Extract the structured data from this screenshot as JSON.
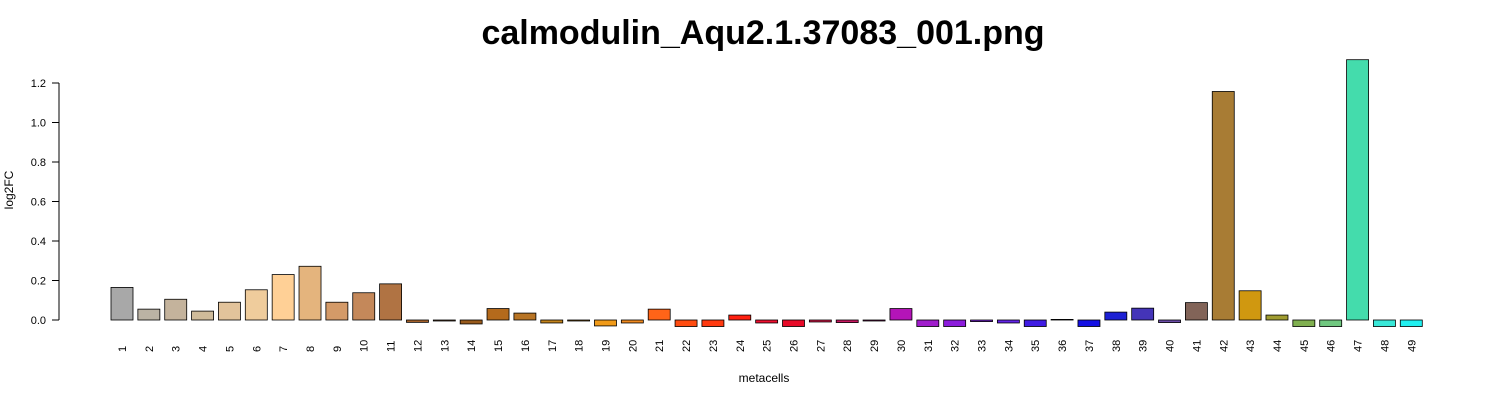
{
  "chart_data": {
    "type": "bar",
    "title": "calmodulin_Aqu2.1.37083_001.png",
    "xlabel": "metacells",
    "ylabel": "log2FC",
    "ylim": [
      -0.04,
      1.32
    ],
    "yticks": [
      "0.0",
      "0.2",
      "0.4",
      "0.6",
      "0.8",
      "1.0",
      "1.2"
    ],
    "ytick_values": [
      0,
      0.2,
      0.4,
      0.6,
      0.8,
      1.0,
      1.2
    ],
    "grid": false,
    "categories": [
      "1",
      "2",
      "3",
      "4",
      "5",
      "6",
      "7",
      "8",
      "9",
      "10",
      "11",
      "12",
      "13",
      "14",
      "15",
      "16",
      "17",
      "18",
      "19",
      "20",
      "21",
      "22",
      "23",
      "24",
      "25",
      "26",
      "27",
      "28",
      "29",
      "30",
      "31",
      "32",
      "33",
      "34",
      "35",
      "36",
      "37",
      "38",
      "39",
      "40",
      "41",
      "42",
      "43",
      "44",
      "45",
      "46",
      "47",
      "48",
      "49"
    ],
    "values": [
      0.165,
      0.055,
      0.105,
      0.045,
      0.09,
      0.153,
      0.23,
      0.272,
      0.09,
      0.138,
      0.183,
      -0.012,
      -0.005,
      -0.02,
      0.058,
      0.035,
      -0.015,
      -0.005,
      -0.03,
      -0.015,
      0.055,
      -0.033,
      -0.033,
      0.025,
      -0.015,
      -0.033,
      -0.01,
      -0.013,
      -0.005,
      0.058,
      -0.033,
      -0.033,
      -0.008,
      -0.015,
      -0.033,
      0.003,
      -0.033,
      0.04,
      0.06,
      -0.013,
      0.088,
      1.157,
      0.148,
      0.025,
      -0.033,
      -0.033,
      1.318,
      -0.033,
      -0.033
    ],
    "colors": [
      "#a8a8a8",
      "#bbb3a4",
      "#c4b39c",
      "#cfbb9a",
      "#e2c39b",
      "#efcc9c",
      "#ffd096",
      "#e4b47d",
      "#d49a68",
      "#c4885a",
      "#b07343",
      "#a8632c",
      "#9c6a3c",
      "#985a1c",
      "#b46a1c",
      "#b87424",
      "#c4841c",
      "#d08c18",
      "#f09a18",
      "#f08a20",
      "#ff6418",
      "#ff4c10",
      "#ff3a10",
      "#ff2010",
      "#f01030",
      "#e80a28",
      "#d81848",
      "#c81860",
      "#b81c84",
      "#b414b8",
      "#a01ccc",
      "#8c1cdc",
      "#7c24dc",
      "#6424e8",
      "#401ce4",
      "#3418dc",
      "#1410e4",
      "#1c20d4",
      "#4434b8",
      "#6c4ca8",
      "#826458",
      "#a87c34",
      "#d09810",
      "#a09c30",
      "#80b050",
      "#70c880",
      "#44dcac",
      "#38e8d8",
      "#20f0f0"
    ]
  }
}
